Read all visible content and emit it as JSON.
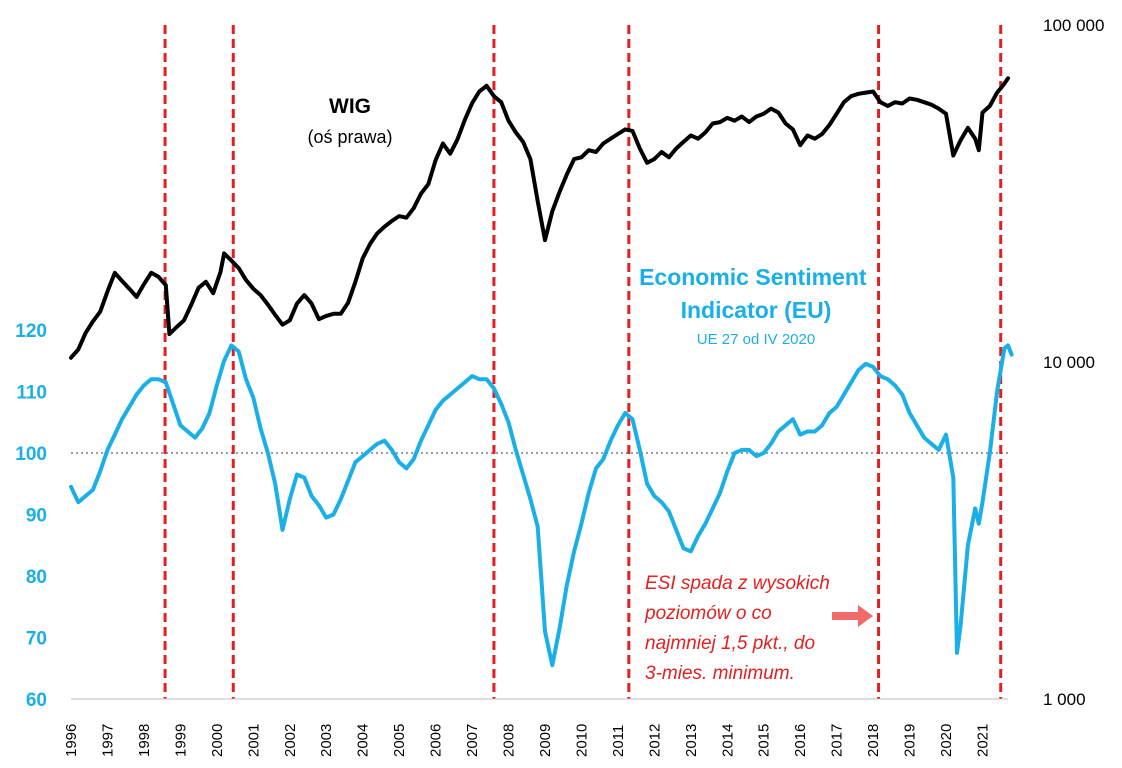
{
  "chart_data": {
    "type": "line",
    "title": "",
    "xlabel": "",
    "ylabel": "",
    "x_range": [
      1996,
      2021.7
    ],
    "x_ticks": [
      "1996",
      "1997",
      "1998",
      "1999",
      "2000",
      "2001",
      "2002",
      "2003",
      "2004",
      "2005",
      "2006",
      "2007",
      "2008",
      "2009",
      "2010",
      "2011",
      "2012",
      "2013",
      "2014",
      "2015",
      "2016",
      "2017",
      "2018",
      "2019",
      "2020",
      "2021"
    ],
    "y_left": {
      "min": 60,
      "max": 120,
      "ticks": [
        "60",
        "70",
        "80",
        "90",
        "100",
        "110",
        "120"
      ]
    },
    "y_right": {
      "scale": "log",
      "min": 1000,
      "max": 100000,
      "ticks": [
        {
          "value": 1000,
          "label": "1 000"
        },
        {
          "value": 10000,
          "label": "10 000"
        },
        {
          "value": 100000,
          "label": "100 000"
        }
      ]
    },
    "reference_line": {
      "axis": "left",
      "value": 100,
      "style": "dotted",
      "color": "#9e9e9e"
    },
    "vertical_markers": {
      "color": "#e41f1f",
      "style": "dashed",
      "x": [
        1998.58,
        2000.45,
        2007.6,
        2011.3,
        2018.15,
        2021.5
      ]
    },
    "series": [
      {
        "name": "WIG",
        "subtitle": "(oś prawa)",
        "axis": "right",
        "color": "#000000",
        "points": [
          [
            1996.0,
            10300
          ],
          [
            1996.2,
            10900
          ],
          [
            1996.4,
            12200
          ],
          [
            1996.6,
            13200
          ],
          [
            1996.8,
            14100
          ],
          [
            1997.0,
            16200
          ],
          [
            1997.2,
            18400
          ],
          [
            1997.4,
            17400
          ],
          [
            1997.6,
            16500
          ],
          [
            1997.8,
            15600
          ],
          [
            1998.0,
            17000
          ],
          [
            1998.2,
            18400
          ],
          [
            1998.4,
            17900
          ],
          [
            1998.6,
            16900
          ],
          [
            1998.7,
            12100
          ],
          [
            1998.9,
            12700
          ],
          [
            1999.1,
            13300
          ],
          [
            1999.3,
            14800
          ],
          [
            1999.5,
            16600
          ],
          [
            1999.7,
            17300
          ],
          [
            1999.9,
            16000
          ],
          [
            2000.1,
            18500
          ],
          [
            2000.2,
            21000
          ],
          [
            2000.4,
            20000
          ],
          [
            2000.6,
            19000
          ],
          [
            2000.8,
            17500
          ],
          [
            2001.0,
            16500
          ],
          [
            2001.2,
            15800
          ],
          [
            2001.4,
            14800
          ],
          [
            2001.6,
            13800
          ],
          [
            2001.8,
            12900
          ],
          [
            2002.0,
            13300
          ],
          [
            2002.2,
            14900
          ],
          [
            2002.4,
            15800
          ],
          [
            2002.6,
            14900
          ],
          [
            2002.8,
            13400
          ],
          [
            2003.0,
            13700
          ],
          [
            2003.2,
            13900
          ],
          [
            2003.4,
            13900
          ],
          [
            2003.6,
            15000
          ],
          [
            2003.8,
            17300
          ],
          [
            2004.0,
            20300
          ],
          [
            2004.2,
            22400
          ],
          [
            2004.4,
            24100
          ],
          [
            2004.6,
            25200
          ],
          [
            2004.8,
            26200
          ],
          [
            2005.0,
            27100
          ],
          [
            2005.2,
            26800
          ],
          [
            2005.4,
            28600
          ],
          [
            2005.6,
            31600
          ],
          [
            2005.8,
            33700
          ],
          [
            2006.0,
            39700
          ],
          [
            2006.2,
            44500
          ],
          [
            2006.4,
            41500
          ],
          [
            2006.6,
            45800
          ],
          [
            2006.8,
            52300
          ],
          [
            2007.0,
            58600
          ],
          [
            2007.2,
            63500
          ],
          [
            2007.4,
            66000
          ],
          [
            2007.6,
            61500
          ],
          [
            2007.8,
            59000
          ],
          [
            2008.0,
            52000
          ],
          [
            2008.2,
            48000
          ],
          [
            2008.4,
            45000
          ],
          [
            2008.6,
            40000
          ],
          [
            2008.8,
            30000
          ],
          [
            2009.0,
            23000
          ],
          [
            2009.2,
            28000
          ],
          [
            2009.4,
            32000
          ],
          [
            2009.6,
            36000
          ],
          [
            2009.8,
            40000
          ],
          [
            2010.0,
            40500
          ],
          [
            2010.2,
            42500
          ],
          [
            2010.4,
            42000
          ],
          [
            2010.6,
            44500
          ],
          [
            2010.8,
            46000
          ],
          [
            2011.0,
            47500
          ],
          [
            2011.2,
            49000
          ],
          [
            2011.4,
            48500
          ],
          [
            2011.6,
            43000
          ],
          [
            2011.8,
            39000
          ],
          [
            2012.0,
            40000
          ],
          [
            2012.2,
            42000
          ],
          [
            2012.4,
            40500
          ],
          [
            2012.6,
            43000
          ],
          [
            2012.8,
            45000
          ],
          [
            2013.0,
            47000
          ],
          [
            2013.2,
            46000
          ],
          [
            2013.4,
            48000
          ],
          [
            2013.6,
            51000
          ],
          [
            2013.8,
            51500
          ],
          [
            2014.0,
            53000
          ],
          [
            2014.2,
            52000
          ],
          [
            2014.4,
            53500
          ],
          [
            2014.6,
            51500
          ],
          [
            2014.8,
            53500
          ],
          [
            2015.0,
            54500
          ],
          [
            2015.2,
            56500
          ],
          [
            2015.4,
            55000
          ],
          [
            2015.6,
            51000
          ],
          [
            2015.8,
            49000
          ],
          [
            2016.0,
            44000
          ],
          [
            2016.2,
            47000
          ],
          [
            2016.4,
            46000
          ],
          [
            2016.6,
            47500
          ],
          [
            2016.8,
            50500
          ],
          [
            2017.0,
            54500
          ],
          [
            2017.2,
            59000
          ],
          [
            2017.4,
            61500
          ],
          [
            2017.6,
            62500
          ],
          [
            2017.8,
            63000
          ],
          [
            2018.0,
            63500
          ],
          [
            2018.2,
            59000
          ],
          [
            2018.4,
            57500
          ],
          [
            2018.6,
            59000
          ],
          [
            2018.8,
            58500
          ],
          [
            2019.0,
            60500
          ],
          [
            2019.2,
            60000
          ],
          [
            2019.4,
            59000
          ],
          [
            2019.6,
            58000
          ],
          [
            2019.8,
            56500
          ],
          [
            2020.0,
            54500
          ],
          [
            2020.2,
            41000
          ],
          [
            2020.4,
            45500
          ],
          [
            2020.6,
            49500
          ],
          [
            2020.8,
            46000
          ],
          [
            2020.9,
            42500
          ],
          [
            2021.0,
            55000
          ],
          [
            2021.2,
            57500
          ],
          [
            2021.4,
            63000
          ],
          [
            2021.6,
            67000
          ],
          [
            2021.7,
            69500
          ]
        ]
      },
      {
        "name": "Economic Sentiment Indicator (EU)",
        "subtitle": "UE 27 od IV 2020",
        "axis": "left",
        "color": "#1aafe6",
        "points": [
          [
            1996.0,
            94.5
          ],
          [
            1996.2,
            92.0
          ],
          [
            1996.4,
            93.0
          ],
          [
            1996.6,
            94.0
          ],
          [
            1996.8,
            97.0
          ],
          [
            1997.0,
            100.5
          ],
          [
            1997.2,
            103.0
          ],
          [
            1997.4,
            105.5
          ],
          [
            1997.6,
            107.5
          ],
          [
            1997.8,
            109.5
          ],
          [
            1998.0,
            111.0
          ],
          [
            1998.2,
            112.0
          ],
          [
            1998.4,
            112.0
          ],
          [
            1998.6,
            111.5
          ],
          [
            1998.8,
            108.0
          ],
          [
            1999.0,
            104.5
          ],
          [
            1999.2,
            103.5
          ],
          [
            1999.4,
            102.5
          ],
          [
            1999.6,
            104.0
          ],
          [
            1999.8,
            106.5
          ],
          [
            2000.0,
            111.0
          ],
          [
            2000.2,
            115.0
          ],
          [
            2000.4,
            117.5
          ],
          [
            2000.6,
            116.5
          ],
          [
            2000.8,
            112.0
          ],
          [
            2001.0,
            109.0
          ],
          [
            2001.2,
            104.0
          ],
          [
            2001.4,
            100.0
          ],
          [
            2001.6,
            95.0
          ],
          [
            2001.8,
            87.5
          ],
          [
            2002.0,
            92.5
          ],
          [
            2002.2,
            96.5
          ],
          [
            2002.4,
            96.0
          ],
          [
            2002.6,
            93.0
          ],
          [
            2002.8,
            91.5
          ],
          [
            2003.0,
            89.5
          ],
          [
            2003.2,
            90.0
          ],
          [
            2003.4,
            92.5
          ],
          [
            2003.6,
            95.5
          ],
          [
            2003.8,
            98.5
          ],
          [
            2004.0,
            99.5
          ],
          [
            2004.2,
            100.5
          ],
          [
            2004.4,
            101.5
          ],
          [
            2004.6,
            102.0
          ],
          [
            2004.8,
            100.5
          ],
          [
            2005.0,
            98.5
          ],
          [
            2005.2,
            97.5
          ],
          [
            2005.4,
            99.0
          ],
          [
            2005.6,
            102.0
          ],
          [
            2005.8,
            104.5
          ],
          [
            2006.0,
            107.0
          ],
          [
            2006.2,
            108.5
          ],
          [
            2006.4,
            109.5
          ],
          [
            2006.6,
            110.5
          ],
          [
            2006.8,
            111.5
          ],
          [
            2007.0,
            112.5
          ],
          [
            2007.2,
            112.0
          ],
          [
            2007.4,
            112.0
          ],
          [
            2007.6,
            110.5
          ],
          [
            2007.8,
            108.0
          ],
          [
            2008.0,
            105.0
          ],
          [
            2008.2,
            100.5
          ],
          [
            2008.4,
            96.5
          ],
          [
            2008.6,
            92.5
          ],
          [
            2008.8,
            88.0
          ],
          [
            2009.0,
            71.0
          ],
          [
            2009.2,
            65.5
          ],
          [
            2009.4,
            71.5
          ],
          [
            2009.6,
            78.5
          ],
          [
            2009.8,
            84.0
          ],
          [
            2010.0,
            88.5
          ],
          [
            2010.2,
            93.5
          ],
          [
            2010.4,
            97.5
          ],
          [
            2010.6,
            99.0
          ],
          [
            2010.8,
            102.0
          ],
          [
            2011.0,
            104.5
          ],
          [
            2011.2,
            106.5
          ],
          [
            2011.4,
            105.5
          ],
          [
            2011.6,
            100.5
          ],
          [
            2011.8,
            95.0
          ],
          [
            2012.0,
            93.0
          ],
          [
            2012.2,
            92.0
          ],
          [
            2012.4,
            90.5
          ],
          [
            2012.6,
            87.5
          ],
          [
            2012.8,
            84.5
          ],
          [
            2013.0,
            84.0
          ],
          [
            2013.2,
            86.5
          ],
          [
            2013.4,
            88.5
          ],
          [
            2013.6,
            91.0
          ],
          [
            2013.8,
            93.5
          ],
          [
            2014.0,
            97.0
          ],
          [
            2014.2,
            100.0
          ],
          [
            2014.4,
            100.5
          ],
          [
            2014.6,
            100.5
          ],
          [
            2014.8,
            99.5
          ],
          [
            2015.0,
            100.0
          ],
          [
            2015.2,
            101.5
          ],
          [
            2015.4,
            103.5
          ],
          [
            2015.6,
            104.5
          ],
          [
            2015.8,
            105.5
          ],
          [
            2016.0,
            103.0
          ],
          [
            2016.2,
            103.5
          ],
          [
            2016.4,
            103.5
          ],
          [
            2016.6,
            104.5
          ],
          [
            2016.8,
            106.5
          ],
          [
            2017.0,
            107.5
          ],
          [
            2017.2,
            109.5
          ],
          [
            2017.4,
            111.5
          ],
          [
            2017.6,
            113.5
          ],
          [
            2017.8,
            114.5
          ],
          [
            2018.0,
            114.0
          ],
          [
            2018.2,
            112.5
          ],
          [
            2018.4,
            112.0
          ],
          [
            2018.6,
            111.0
          ],
          [
            2018.8,
            109.5
          ],
          [
            2019.0,
            106.5
          ],
          [
            2019.2,
            104.5
          ],
          [
            2019.4,
            102.5
          ],
          [
            2019.6,
            101.5
          ],
          [
            2019.8,
            100.5
          ],
          [
            2020.0,
            103.0
          ],
          [
            2020.2,
            96.0
          ],
          [
            2020.3,
            67.5
          ],
          [
            2020.4,
            72.0
          ],
          [
            2020.6,
            85.0
          ],
          [
            2020.8,
            91.0
          ],
          [
            2020.9,
            88.5
          ],
          [
            2021.0,
            92.0
          ],
          [
            2021.2,
            100.0
          ],
          [
            2021.4,
            110.0
          ],
          [
            2021.6,
            117.0
          ],
          [
            2021.7,
            117.5
          ],
          [
            2021.8,
            116.0
          ]
        ]
      }
    ],
    "annotation": {
      "lines": [
        "ESI spada z wysokich",
        "poziomów o co",
        "najmniej 1,5 pkt., do",
        "3-mies. minimum."
      ],
      "color": "#e41f1f",
      "arrow_color": "#f26b6b"
    }
  }
}
